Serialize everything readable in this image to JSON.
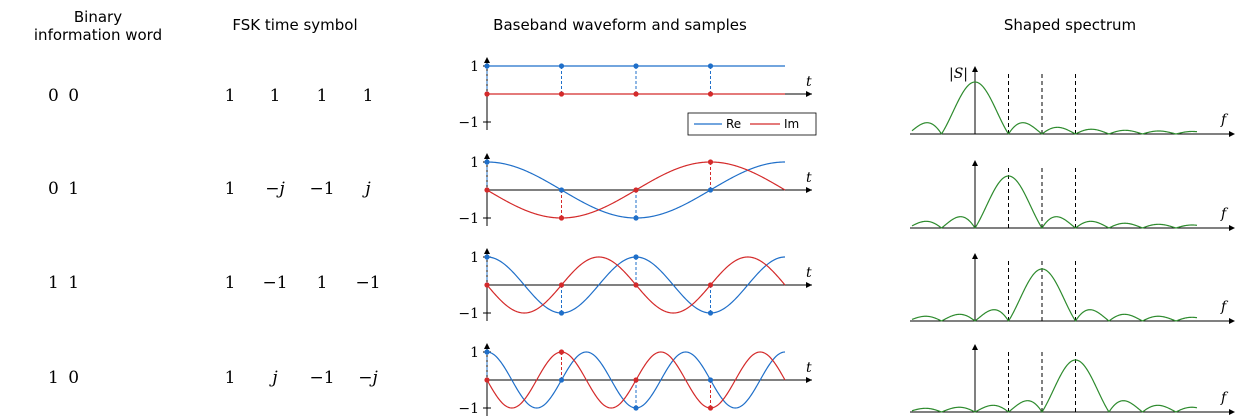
{
  "headers": {
    "col1": "Binary\ninformation word",
    "col1_line1": "Binary",
    "col1_line2": "information word",
    "col2": "FSK time symbol",
    "col3": "Baseband waveform and samples",
    "col4": "Shaped spectrum"
  },
  "rows": [
    {
      "word": "0 0",
      "freq": 0,
      "symbols": [
        {
          "t": "1",
          "it": false
        },
        {
          "t": "1",
          "it": false
        },
        {
          "t": "1",
          "it": false
        },
        {
          "t": "1",
          "it": false
        }
      ]
    },
    {
      "word": "0 1",
      "freq": 1,
      "symbols": [
        {
          "t": "1",
          "it": false
        },
        {
          "t": "−j",
          "it": true
        },
        {
          "t": "−1",
          "it": false
        },
        {
          "t": "j",
          "it": true
        }
      ]
    },
    {
      "word": "1 1",
      "freq": 2,
      "symbols": [
        {
          "t": "1",
          "it": false
        },
        {
          "t": "−1",
          "it": false
        },
        {
          "t": "1",
          "it": false
        },
        {
          "t": "−1",
          "it": false
        }
      ]
    },
    {
      "word": "1 0",
      "freq": 3,
      "symbols": [
        {
          "t": "1",
          "it": false
        },
        {
          "t": "j",
          "it": true
        },
        {
          "t": "−1",
          "it": false
        },
        {
          "t": "−j",
          "it": true
        }
      ]
    }
  ],
  "waveform": {
    "tick_pos": "1",
    "tick_neg": "−1",
    "t_label": "t",
    "legend": {
      "re": "Re",
      "im": "Im"
    }
  },
  "spectrum": {
    "y_label": "|S|",
    "f_label": "f"
  },
  "colors": {
    "re": "#1f6fc9",
    "im": "#d42a2a",
    "spectrum": "#2e8b2e",
    "axis": "#000000"
  }
}
